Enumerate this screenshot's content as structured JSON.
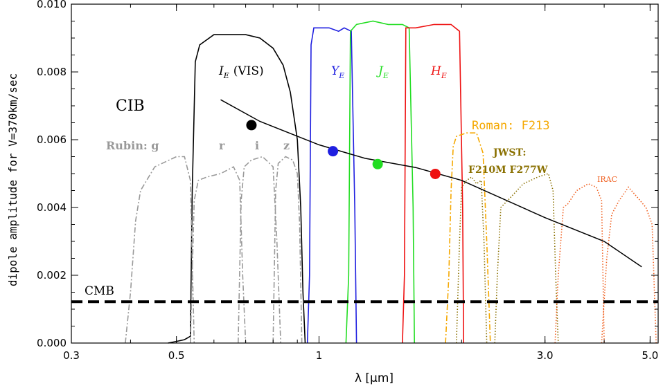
{
  "chart_data": {
    "type": "line",
    "title": "",
    "xlabel": "λ  [μm]",
    "ylabel": "dipole amplitude for V=370km/sec",
    "x_scale": "log",
    "xlim": [
      0.3,
      5.2
    ],
    "ylim": [
      0.0,
      0.01
    ],
    "x_ticks": [
      {
        "value": 0.3,
        "label": "0.3"
      },
      {
        "value": 0.5,
        "label": "0.5"
      },
      {
        "value": 1.0,
        "label": "1"
      },
      {
        "value": 3.0,
        "label": "3.0"
      },
      {
        "value": 5.0,
        "label": "5.0"
      }
    ],
    "y_ticks": [
      {
        "value": 0.0,
        "label": "0.000"
      },
      {
        "value": 0.002,
        "label": "0.002"
      },
      {
        "value": 0.004,
        "label": "0.004"
      },
      {
        "value": 0.006,
        "label": "0.006"
      },
      {
        "value": 0.008,
        "label": "0.008"
      },
      {
        "value": 0.01,
        "label": "0.010"
      }
    ],
    "cib": {
      "label": "CIB",
      "color": "#000000",
      "x": [
        0.62,
        0.75,
        1.0,
        1.25,
        1.6,
        2.0,
        3.0,
        4.0,
        4.8
      ],
      "y": [
        0.00718,
        0.00654,
        0.00585,
        0.00545,
        0.00518,
        0.0048,
        0.0037,
        0.003,
        0.00225
      ]
    },
    "cib_points": [
      {
        "band": "IE",
        "x": 0.72,
        "y": 0.00643,
        "color": "#000000"
      },
      {
        "band": "YE",
        "x": 1.07,
        "y": 0.00566,
        "color": "#1f1fe0"
      },
      {
        "band": "JE",
        "x": 1.33,
        "y": 0.00528,
        "color": "#22dd22"
      },
      {
        "band": "HE",
        "x": 1.76,
        "y": 0.00499,
        "color": "#ee1111"
      }
    ],
    "cmb": {
      "label": "CMB",
      "y": 0.00122,
      "color": "#000000"
    },
    "labels": {
      "ie_main": "I",
      "ie_sub": "E",
      "ie_extra": "(VIS)",
      "ye_main": "Y",
      "ye_sub": "E",
      "je_main": "J",
      "je_sub": "E",
      "he_main": "H",
      "he_sub": "E",
      "rubin": "Rubin: g",
      "rubin_r": "r",
      "rubin_i": "i",
      "rubin_z": "z",
      "roman": "Roman: F213",
      "jwst": "JWST:",
      "jwst_filters": "F210M F277W",
      "irac": "IRAC"
    },
    "colors": {
      "euclid_vis": "#000000",
      "euclid_y": "#1f1fe0",
      "euclid_j": "#22dd22",
      "euclid_h": "#ee1111",
      "rubin": "#999999",
      "roman": "#f5a800",
      "jwst": "#8a7000",
      "irac": "#f06020"
    },
    "filters": [
      {
        "name": "VIS",
        "color_key": "euclid_vis",
        "style": "solid",
        "x": [
          0.48,
          0.5,
          0.52,
          0.535,
          0.54,
          0.548,
          0.56,
          0.6,
          0.65,
          0.7,
          0.75,
          0.8,
          0.84,
          0.87,
          0.9,
          0.915,
          0.925,
          0.935
        ],
        "y": [
          0.0,
          5e-05,
          0.0001,
          0.0002,
          0.0045,
          0.0083,
          0.0088,
          0.0091,
          0.0091,
          0.0091,
          0.009,
          0.0087,
          0.0082,
          0.0074,
          0.006,
          0.004,
          0.0015,
          0.0
        ]
      },
      {
        "name": "Y",
        "color_key": "euclid_y",
        "style": "solid",
        "x": [
          0.945,
          0.955,
          0.962,
          0.975,
          1.0,
          1.05,
          1.1,
          1.13,
          1.17,
          1.19,
          1.2
        ],
        "y": [
          0.0,
          0.002,
          0.0088,
          0.0093,
          0.0093,
          0.0093,
          0.0092,
          0.0093,
          0.0092,
          0.004,
          0.0
        ]
      },
      {
        "name": "J",
        "color_key": "euclid_j",
        "style": "solid",
        "x": [
          1.14,
          1.155,
          1.165,
          1.2,
          1.3,
          1.4,
          1.5,
          1.55,
          1.58,
          1.59
        ],
        "y": [
          0.0,
          0.002,
          0.0092,
          0.0094,
          0.0095,
          0.0094,
          0.0094,
          0.0093,
          0.004,
          0.0
        ]
      },
      {
        "name": "H",
        "color_key": "euclid_h",
        "style": "solid",
        "x": [
          1.5,
          1.515,
          1.525,
          1.6,
          1.75,
          1.9,
          1.98,
          2.01,
          2.02
        ],
        "y": [
          0.0,
          0.002,
          0.0093,
          0.0093,
          0.0094,
          0.0094,
          0.0092,
          0.004,
          0.0
        ]
      },
      {
        "name": "g",
        "color_key": "rubin",
        "style": "dashdot",
        "x": [
          0.39,
          0.4,
          0.41,
          0.42,
          0.45,
          0.5,
          0.52,
          0.535,
          0.545
        ],
        "y": [
          0.0,
          0.0015,
          0.0036,
          0.0045,
          0.0052,
          0.0055,
          0.0055,
          0.0048,
          0.0
        ]
      },
      {
        "name": "r",
        "color_key": "rubin",
        "style": "dashdot",
        "x": [
          0.535,
          0.545,
          0.556,
          0.58,
          0.62,
          0.66,
          0.68,
          0.69,
          0.7
        ],
        "y": [
          0.0,
          0.0042,
          0.0048,
          0.0049,
          0.005,
          0.0052,
          0.0048,
          0.002,
          0.0
        ]
      },
      {
        "name": "i",
        "color_key": "rubin",
        "style": "dashdot",
        "x": [
          0.675,
          0.685,
          0.695,
          0.72,
          0.76,
          0.8,
          0.815,
          0.83
        ],
        "y": [
          0.0,
          0.0042,
          0.0052,
          0.0054,
          0.0055,
          0.0052,
          0.003,
          0.0
        ]
      },
      {
        "name": "z",
        "color_key": "rubin",
        "style": "dashdot",
        "x": [
          0.8,
          0.81,
          0.82,
          0.85,
          0.88,
          0.9,
          0.91,
          0.92
        ],
        "y": [
          0.0,
          0.0045,
          0.0053,
          0.0055,
          0.0054,
          0.005,
          0.0035,
          0.0
        ]
      },
      {
        "name": "F213",
        "color_key": "roman",
        "style": "dashdot",
        "x": [
          1.85,
          1.88,
          1.9,
          1.92,
          1.95,
          2.05,
          2.15,
          2.22,
          2.26,
          2.3
        ],
        "y": [
          0.0,
          0.002,
          0.0045,
          0.0058,
          0.0061,
          0.0062,
          0.0062,
          0.0056,
          0.003,
          0.0
        ]
      },
      {
        "name": "F210M",
        "color_key": "jwst",
        "style": "dotted",
        "x": [
          1.95,
          1.98,
          2.0,
          2.05,
          2.1,
          2.15,
          2.2,
          2.23,
          2.26
        ],
        "y": [
          0.0,
          0.003,
          0.0046,
          0.0048,
          0.0049,
          0.0047,
          0.0048,
          0.003,
          0.0
        ]
      },
      {
        "name": "F277W",
        "color_key": "jwst",
        "style": "dotted",
        "x": [
          2.35,
          2.38,
          2.42,
          2.5,
          2.7,
          2.9,
          3.05,
          3.12,
          3.16,
          3.2
        ],
        "y": [
          0.0,
          0.002,
          0.004,
          0.0042,
          0.0047,
          0.0049,
          0.005,
          0.0045,
          0.002,
          0.0
        ]
      },
      {
        "name": "IRAC1",
        "color_key": "irac",
        "style": "dotted",
        "x": [
          3.15,
          3.2,
          3.28,
          3.35,
          3.5,
          3.7,
          3.85,
          3.95,
          4.0
        ],
        "y": [
          0.0,
          0.002,
          0.004,
          0.0041,
          0.0045,
          0.0047,
          0.0046,
          0.0042,
          0.0
        ]
      },
      {
        "name": "IRAC2",
        "color_key": "irac",
        "style": "dotted",
        "x": [
          3.95,
          4.05,
          4.15,
          4.3,
          4.5,
          4.7,
          4.9,
          5.05,
          5.15
        ],
        "y": [
          0.0,
          0.0025,
          0.0038,
          0.0042,
          0.0046,
          0.0043,
          0.004,
          0.0035,
          0.0
        ]
      }
    ]
  }
}
